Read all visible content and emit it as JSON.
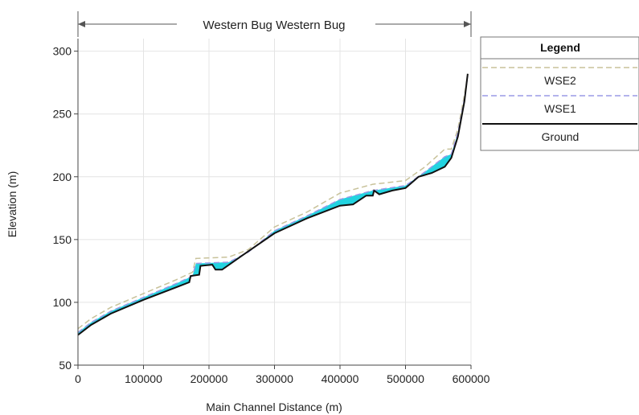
{
  "chart_data": {
    "type": "line",
    "title": "Western Bug Western Bug",
    "xlabel": "Main Channel Distance (m)",
    "ylabel": "Elevation (m)",
    "xlim": [
      0,
      600000
    ],
    "ylim": [
      50,
      310
    ],
    "x_ticks": [
      "0",
      "100000",
      "200000",
      "300000",
      "400000",
      "500000",
      "600000"
    ],
    "y_ticks": [
      "50",
      "100",
      "150",
      "200",
      "250",
      "300"
    ],
    "grid": true,
    "legend": {
      "title": "Legend",
      "placement": "right"
    },
    "series": [
      {
        "name": "WSE2",
        "color": "#c8c29a",
        "style": "dashed",
        "points": [
          [
            0,
            79
          ],
          [
            20000,
            87
          ],
          [
            50000,
            96
          ],
          [
            100000,
            107
          ],
          [
            150000,
            118
          ],
          [
            175000,
            124
          ],
          [
            180000,
            135
          ],
          [
            230000,
            136
          ],
          [
            260000,
            142
          ],
          [
            300000,
            160
          ],
          [
            350000,
            172
          ],
          [
            400000,
            187
          ],
          [
            450000,
            194
          ],
          [
            500000,
            197
          ],
          [
            530000,
            208
          ],
          [
            560000,
            222
          ],
          [
            570000,
            222
          ],
          [
            580000,
            238
          ],
          [
            590000,
            265
          ],
          [
            595000,
            281
          ]
        ]
      },
      {
        "name": "WSE1",
        "color": "#9a9ae6",
        "style": "dashed",
        "points": [
          [
            0,
            76
          ],
          [
            20000,
            84
          ],
          [
            50000,
            93
          ],
          [
            100000,
            104
          ],
          [
            150000,
            115
          ],
          [
            175000,
            121
          ],
          [
            180000,
            131
          ],
          [
            230000,
            132
          ],
          [
            260000,
            140
          ],
          [
            300000,
            157
          ],
          [
            350000,
            169
          ],
          [
            400000,
            182
          ],
          [
            450000,
            189
          ],
          [
            500000,
            193
          ],
          [
            530000,
            204
          ],
          [
            560000,
            216
          ],
          [
            570000,
            218
          ],
          [
            580000,
            235
          ],
          [
            590000,
            262
          ],
          [
            595000,
            280
          ]
        ]
      },
      {
        "name": "Ground",
        "color": "#111111",
        "style": "solid",
        "points": [
          [
            0,
            74
          ],
          [
            20000,
            82
          ],
          [
            50000,
            91
          ],
          [
            100000,
            102
          ],
          [
            150000,
            112
          ],
          [
            170000,
            116
          ],
          [
            172000,
            121
          ],
          [
            185000,
            122
          ],
          [
            187000,
            129
          ],
          [
            205000,
            130
          ],
          [
            210000,
            126
          ],
          [
            220000,
            126
          ],
          [
            250000,
            137
          ],
          [
            300000,
            155
          ],
          [
            350000,
            167
          ],
          [
            400000,
            177
          ],
          [
            420000,
            178
          ],
          [
            440000,
            185
          ],
          [
            450000,
            185
          ],
          [
            452000,
            189
          ],
          [
            460000,
            186
          ],
          [
            480000,
            189
          ],
          [
            500000,
            191
          ],
          [
            520000,
            200
          ],
          [
            540000,
            203
          ],
          [
            560000,
            208
          ],
          [
            570000,
            215
          ],
          [
            580000,
            232
          ],
          [
            590000,
            260
          ],
          [
            595000,
            282
          ]
        ]
      }
    ],
    "fill": {
      "between": [
        "WSE1",
        "Ground"
      ],
      "color": "#22d3e0"
    }
  }
}
